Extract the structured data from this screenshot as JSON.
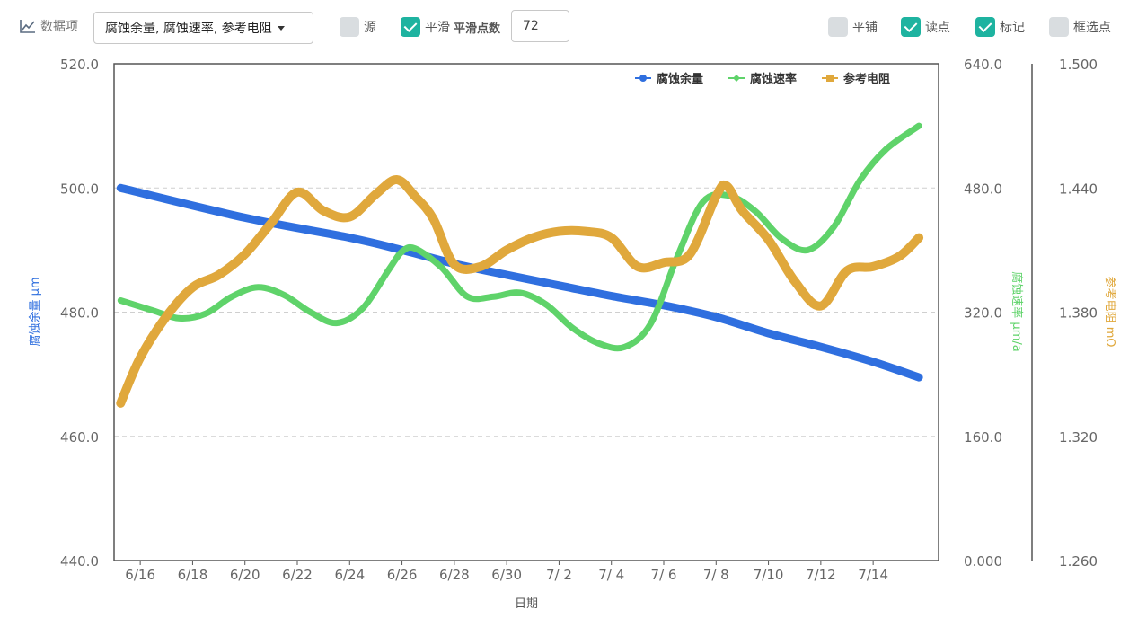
{
  "toolbar": {
    "data_items_label": "数据项",
    "data_items_selected": "腐蚀余量, 腐蚀速率, 参考电阻",
    "source_label": "源",
    "source_checked": false,
    "smooth_label": "平滑",
    "smooth_checked": true,
    "smooth_points_label": "平滑点数",
    "smooth_points_value": "72",
    "tile_label": "平铺",
    "tile_checked": false,
    "read_point_label": "读点",
    "read_point_checked": true,
    "mark_label": "标记",
    "mark_checked": true,
    "box_select_label": "框选点",
    "box_select_checked": false
  },
  "chart_data": {
    "type": "line",
    "xlabel": "日期",
    "x_ticks": [
      "6/16",
      "6/18",
      "6/20",
      "6/22",
      "6/24",
      "6/26",
      "6/28",
      "6/30",
      "7/ 2",
      "7/ 4",
      "7/ 6",
      "7/ 8",
      "7/10",
      "7/12",
      "7/14"
    ],
    "x_tick_days": [
      1,
      3,
      5,
      7,
      9,
      11,
      13,
      15,
      17,
      19,
      21,
      23,
      25,
      27,
      29
    ],
    "xlim_days": [
      0,
      31.5
    ],
    "grid": true,
    "legend_position": "top-right",
    "axes": {
      "left": {
        "label": "腐蚀余量 μm",
        "ylim": [
          440,
          520
        ],
        "ticks": [
          "440.0",
          "460.0",
          "480.0",
          "500.0",
          "520.0"
        ],
        "color": "#2f6fdf"
      },
      "right1": {
        "label": "腐蚀速率 μm/a",
        "ylim": [
          0,
          640
        ],
        "ticks": [
          "0.000",
          "160.0",
          "320.0",
          "480.0",
          "640.0"
        ],
        "color": "#5fd36a"
      },
      "right2": {
        "label": "参考电阻 mΩ",
        "ylim": [
          1.26,
          1.5
        ],
        "ticks": [
          "1.260",
          "1.320",
          "1.380",
          "1.440",
          "1.500"
        ],
        "color": "#e0a83c"
      }
    },
    "series": [
      {
        "name": "腐蚀余量",
        "axis": "left",
        "color": "#2f6fdf",
        "marker": "circle",
        "x": [
          0.25,
          5,
          9,
          11,
          13,
          15,
          17,
          19,
          21,
          23,
          25,
          27,
          29,
          30.75
        ],
        "y": [
          500.0,
          495.2,
          492.0,
          490.0,
          487.8,
          486.0,
          484.3,
          482.6,
          481.1,
          479.2,
          476.6,
          474.4,
          472.0,
          469.5
        ]
      },
      {
        "name": "腐蚀速率",
        "axis": "right1",
        "color": "#5fd36a",
        "marker": "diamond",
        "x": [
          0.25,
          1.5,
          2.5,
          3.5,
          4.5,
          5.5,
          6.5,
          7.5,
          8.5,
          9.5,
          10.5,
          11.0,
          11.5,
          12.5,
          13.5,
          14.5,
          15.5,
          16.5,
          17.5,
          18.5,
          19.5,
          20.5,
          21.5,
          22.5,
          23.5,
          24.5,
          25.5,
          26.5,
          27.5,
          28.5,
          29.5,
          30.75
        ],
        "y": [
          335,
          322,
          312,
          318,
          340,
          352,
          342,
          320,
          306,
          325,
          375,
          398,
          402,
          378,
          340,
          340,
          345,
          330,
          300,
          280,
          275,
          305,
          390,
          462,
          470,
          450,
          415,
          400,
          430,
          490,
          530,
          560
        ]
      },
      {
        "name": "参考电阻",
        "axis": "right2",
        "color": "#e0a83c",
        "marker": "square",
        "x": [
          0.25,
          1.0,
          2.0,
          3.0,
          4.0,
          5.0,
          6.0,
          7.0,
          8.0,
          9.0,
          10.0,
          10.8,
          11.5,
          12.2,
          13.0,
          14.0,
          15.0,
          16.0,
          17.0,
          18.0,
          19.0,
          20.0,
          21.0,
          22.0,
          23.0,
          23.4,
          24.0,
          25.0,
          26.0,
          27.0,
          28.0,
          29.0,
          30.0,
          30.75
        ],
        "y": [
          1.336,
          1.358,
          1.378,
          1.392,
          1.398,
          1.408,
          1.423,
          1.438,
          1.429,
          1.426,
          1.437,
          1.444,
          1.436,
          1.425,
          1.403,
          1.402,
          1.41,
          1.416,
          1.419,
          1.419,
          1.416,
          1.402,
          1.404,
          1.408,
          1.436,
          1.441,
          1.429,
          1.415,
          1.395,
          1.383,
          1.4,
          1.402,
          1.407,
          1.416
        ]
      }
    ]
  }
}
